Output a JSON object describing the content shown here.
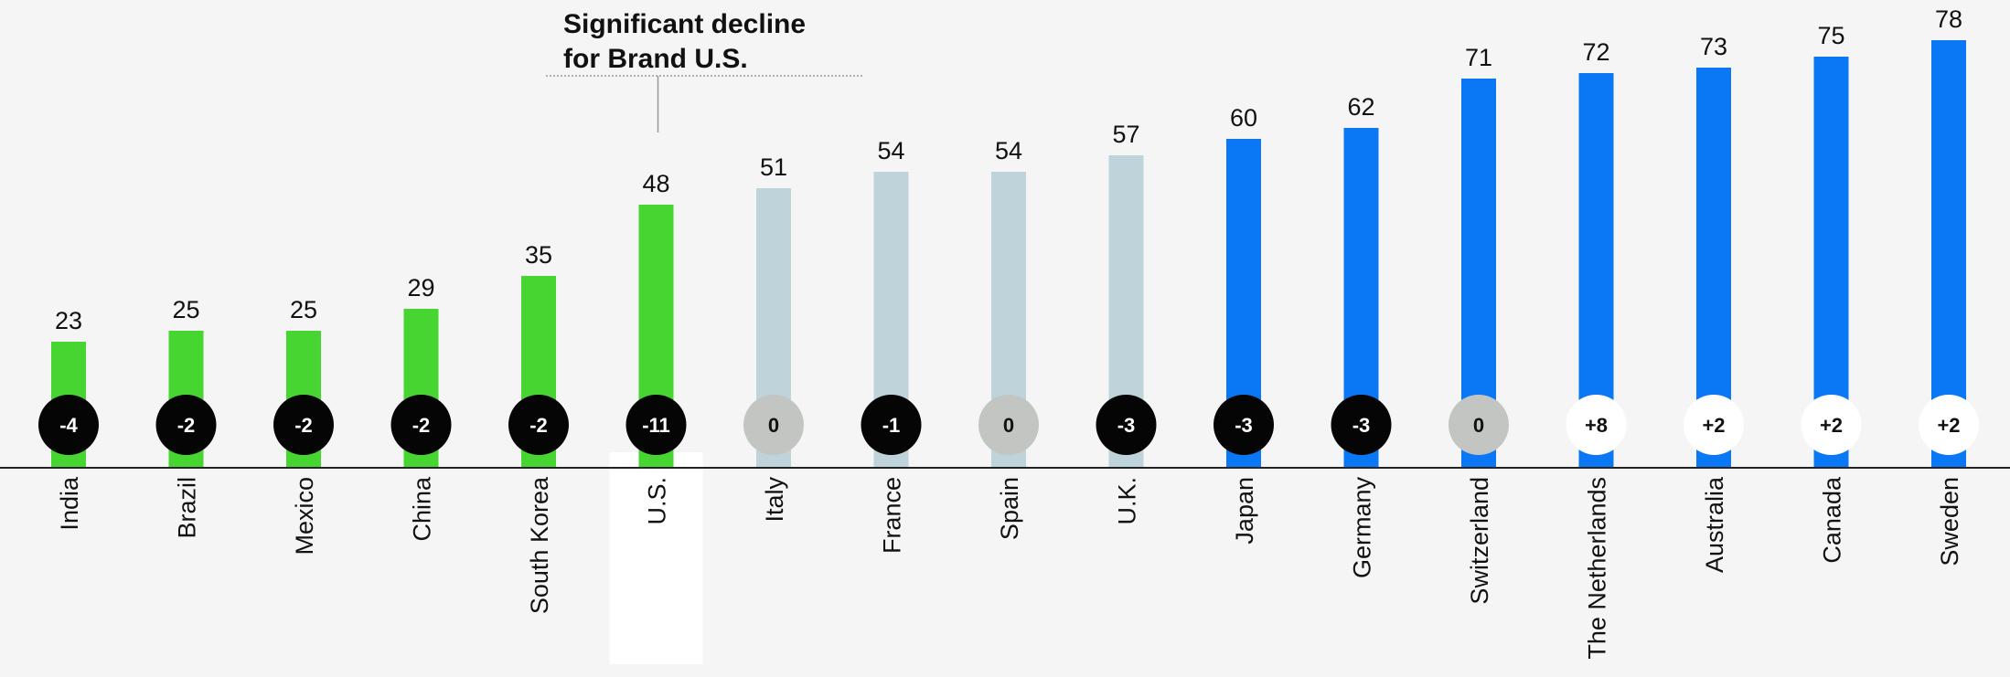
{
  "chart_data": {
    "type": "bar",
    "title": "",
    "xlabel": "",
    "ylabel": "",
    "ylim": [
      0,
      80
    ],
    "grid": false,
    "legend": "none",
    "categories": [
      "India",
      "Brazil",
      "Mexico",
      "China",
      "South Korea",
      "U.S.",
      "Italy",
      "France",
      "Spain",
      "U.K.",
      "Japan",
      "Germany",
      "Switzerland",
      "The Netherlands",
      "Australia",
      "Canada",
      "Sweden"
    ],
    "values": [
      23,
      25,
      25,
      29,
      35,
      48,
      51,
      54,
      54,
      57,
      60,
      62,
      71,
      72,
      73,
      75,
      78
    ],
    "changes": [
      "-4",
      "-2",
      "-2",
      "-2",
      "-2",
      "-11",
      "0",
      "-1",
      "0",
      "-3",
      "-3",
      "-3",
      "0",
      "+8",
      "+2",
      "+2",
      "+2"
    ],
    "bar_groups": [
      "low",
      "low",
      "low",
      "low",
      "low",
      "low",
      "mid",
      "mid",
      "mid",
      "mid",
      "high",
      "high",
      "high",
      "high",
      "high",
      "high",
      "high"
    ],
    "badge_styles": [
      "dark",
      "dark",
      "dark",
      "dark",
      "dark",
      "dark",
      "neutral",
      "dark",
      "neutral",
      "dark",
      "dark",
      "dark",
      "neutral",
      "light",
      "light",
      "light",
      "light"
    ],
    "highlight_category": "U.S.",
    "annotation": {
      "lines": [
        "Significant decline",
        "for Brand U.S."
      ],
      "target": "U.S."
    }
  },
  "colors": {
    "background": "#f4f5f4",
    "bar_low": "#47d531",
    "bar_mid": "#bed3da",
    "bar_high": "#0a78f5",
    "badge_dark_bg": "#050505",
    "badge_dark_text": "#ffffff",
    "badge_neutral_bg": "#c3c5c3",
    "badge_neutral_text": "#111111",
    "badge_light_bg": "#ffffff",
    "badge_light_text": "#111111",
    "highlight_panel": "#ffffff",
    "axis": "#222222",
    "connector": "#999999"
  }
}
